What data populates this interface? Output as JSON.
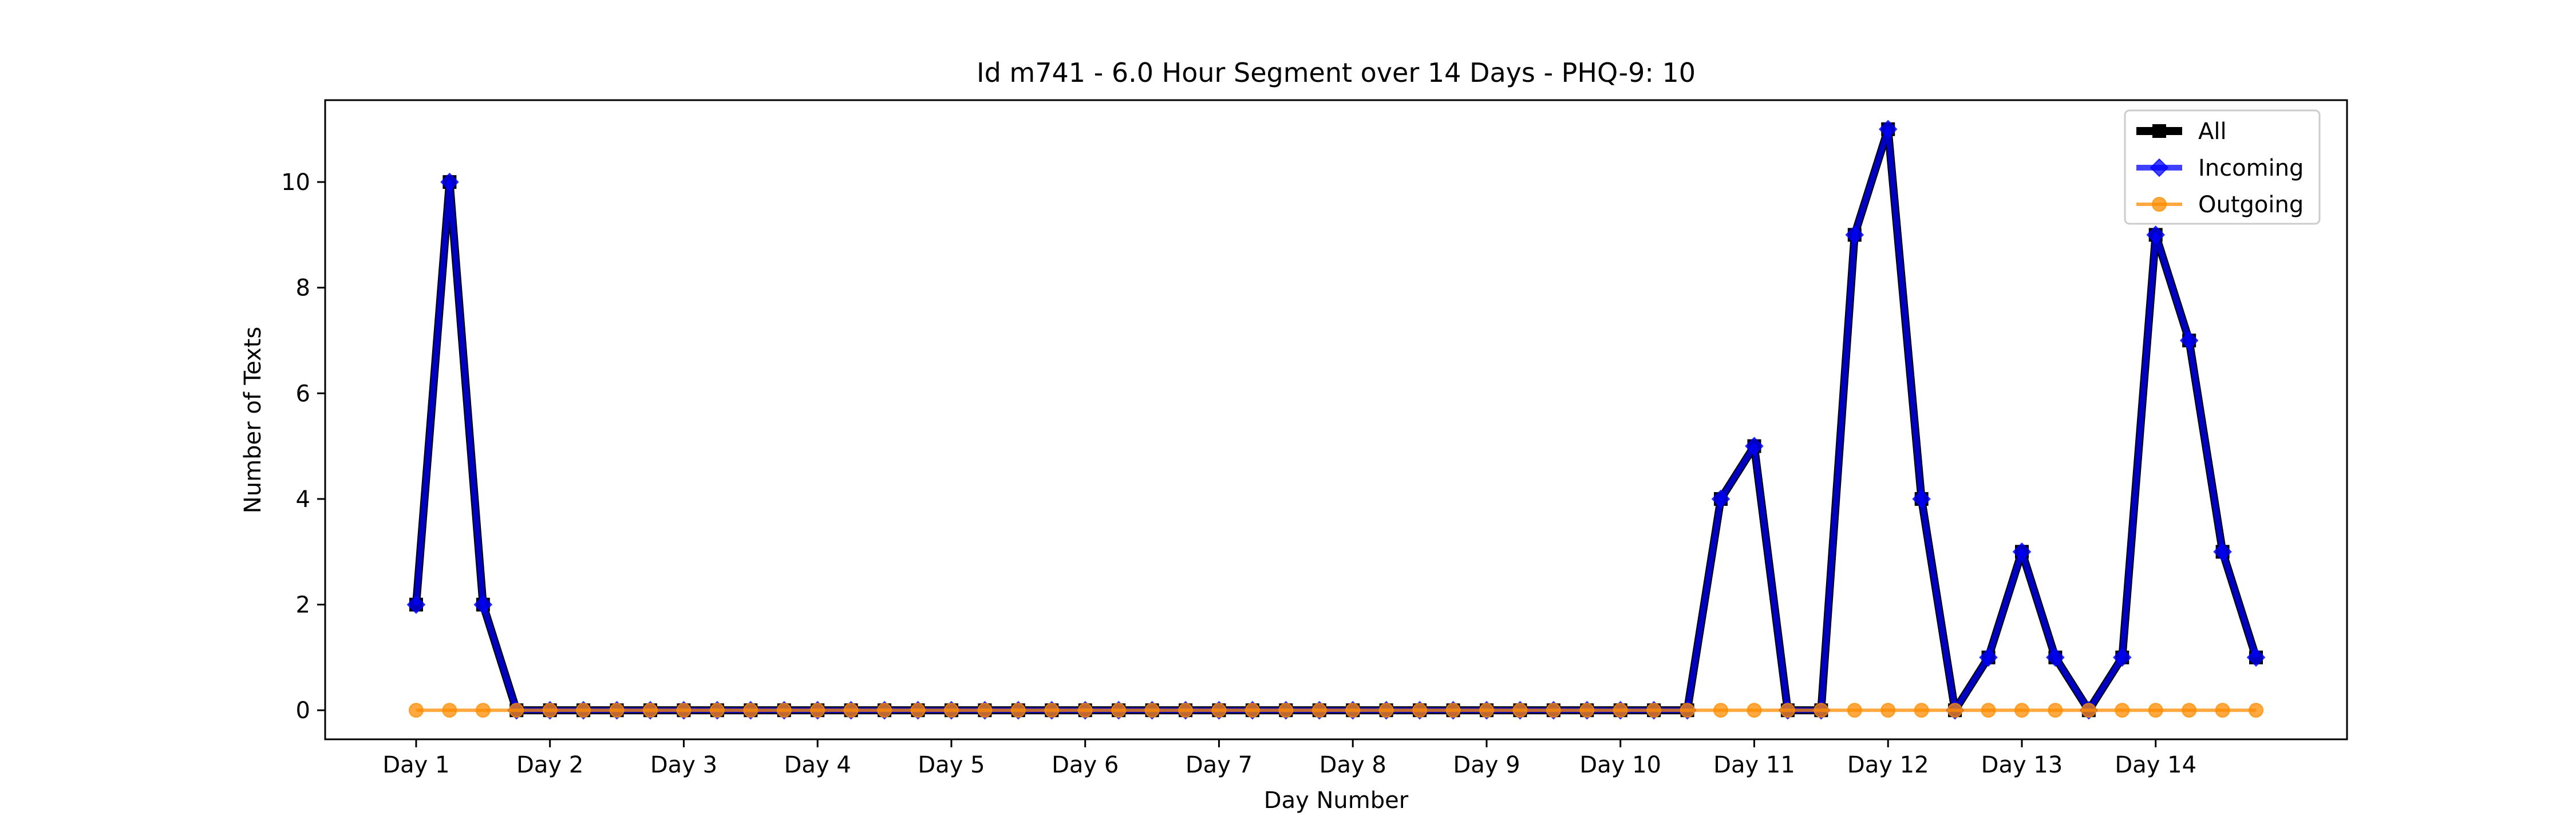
{
  "chart_data": {
    "type": "line",
    "title": "Id m741 - 6.0 Hour Segment over 14 Days - PHQ-9: 10",
    "xlabel": "Day Number",
    "ylabel": "Number of Texts",
    "x_tick_labels": [
      "Day 1",
      "Day 2",
      "Day 3",
      "Day 4",
      "Day 5",
      "Day 6",
      "Day 7",
      "Day 8",
      "Day 9",
      "Day 10",
      "Day 11",
      "Day 12",
      "Day 13",
      "Day 14"
    ],
    "x_tick_values": [
      1,
      2,
      3,
      4,
      5,
      6,
      7,
      8,
      9,
      10,
      11,
      12,
      13,
      14
    ],
    "y_ticks": [
      0,
      2,
      4,
      6,
      8,
      10
    ],
    "xlim": [
      0.32,
      15.43
    ],
    "ylim": [
      -0.55,
      11.55
    ],
    "grid": false,
    "legend_position": "top-right",
    "x": [
      1.0,
      1.25,
      1.5,
      1.75,
      2.0,
      2.25,
      2.5,
      2.75,
      3.0,
      3.25,
      3.5,
      3.75,
      4.0,
      4.25,
      4.5,
      4.75,
      5.0,
      5.25,
      5.5,
      5.75,
      6.0,
      6.25,
      6.5,
      6.75,
      7.0,
      7.25,
      7.5,
      7.75,
      8.0,
      8.25,
      8.5,
      8.75,
      9.0,
      9.25,
      9.5,
      9.75,
      10.0,
      10.25,
      10.5,
      10.75,
      11.0,
      11.25,
      11.5,
      11.75,
      12.0,
      12.25,
      12.5,
      12.75,
      13.0,
      13.25,
      13.5,
      13.75,
      14.0,
      14.25,
      14.5,
      14.75
    ],
    "series": [
      {
        "name": "All",
        "color": "#000000",
        "marker": "square",
        "values": [
          2,
          10,
          2,
          0,
          0,
          0,
          0,
          0,
          0,
          0,
          0,
          0,
          0,
          0,
          0,
          0,
          0,
          0,
          0,
          0,
          0,
          0,
          0,
          0,
          0,
          0,
          0,
          0,
          0,
          0,
          0,
          0,
          0,
          0,
          0,
          0,
          0,
          0,
          0,
          4,
          5,
          0,
          0,
          9,
          11,
          4,
          0,
          1,
          3,
          1,
          0,
          1,
          9,
          7,
          3,
          1
        ]
      },
      {
        "name": "Incoming",
        "color": "#0000ff",
        "marker": "diamond",
        "values": [
          2,
          10,
          2,
          0,
          0,
          0,
          0,
          0,
          0,
          0,
          0,
          0,
          0,
          0,
          0,
          0,
          0,
          0,
          0,
          0,
          0,
          0,
          0,
          0,
          0,
          0,
          0,
          0,
          0,
          0,
          0,
          0,
          0,
          0,
          0,
          0,
          0,
          0,
          0,
          4,
          5,
          0,
          0,
          9,
          11,
          4,
          0,
          1,
          3,
          1,
          0,
          1,
          9,
          7,
          3,
          1
        ]
      },
      {
        "name": "Outgoing",
        "color": "#ff8c00",
        "marker": "circle",
        "values": [
          0,
          0,
          0,
          0,
          0,
          0,
          0,
          0,
          0,
          0,
          0,
          0,
          0,
          0,
          0,
          0,
          0,
          0,
          0,
          0,
          0,
          0,
          0,
          0,
          0,
          0,
          0,
          0,
          0,
          0,
          0,
          0,
          0,
          0,
          0,
          0,
          0,
          0,
          0,
          0,
          0,
          0,
          0,
          0,
          0,
          0,
          0,
          0,
          0,
          0,
          0,
          0,
          0,
          0,
          0,
          0
        ]
      }
    ]
  }
}
